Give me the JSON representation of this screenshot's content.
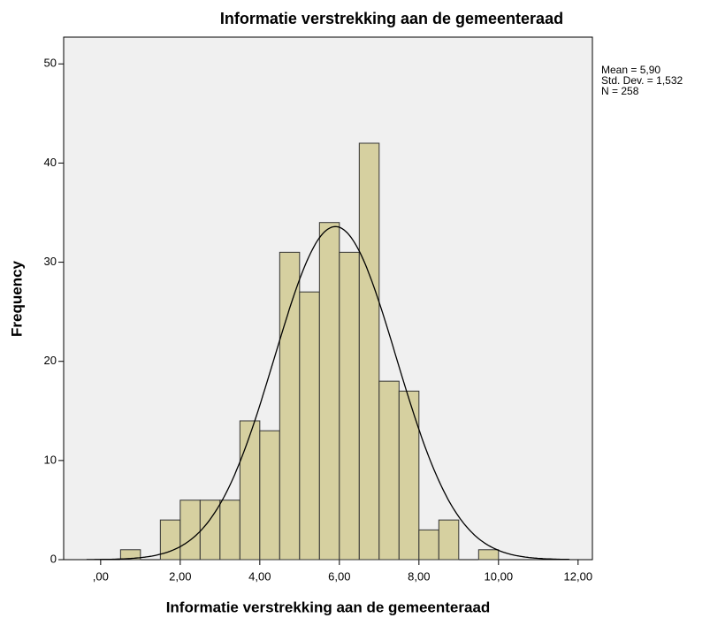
{
  "chart_data": {
    "type": "histogram",
    "title": "Informatie verstrekking aan de gemeenteraad",
    "x_label": "Informatie verstrekking aan de gemeenteraad",
    "y_label": "Frequency",
    "bins": [
      0.5,
      1.0,
      1.5,
      2.0,
      2.5,
      3.0,
      3.5,
      4.0,
      4.5,
      5.0,
      5.5,
      6.0,
      6.5,
      7.0,
      7.5,
      8.0,
      8.5,
      9.0,
      9.5,
      10.0
    ],
    "values": [
      1,
      0,
      4,
      6,
      6,
      6,
      14,
      13,
      31,
      27,
      34,
      31,
      42,
      18,
      17,
      3,
      4,
      0,
      1
    ],
    "color": "#d6d0a0",
    "edge_color": "#333333",
    "plot_background": "#f0f0f0",
    "xlim": [
      -0.93,
      12.36
    ],
    "ylim": [
      0,
      52.7
    ],
    "xticks": [
      {
        "value": 0,
        "label": ",00"
      },
      {
        "value": 2,
        "label": "2,00"
      },
      {
        "value": 4,
        "label": "4,00"
      },
      {
        "value": 6,
        "label": "6,00"
      },
      {
        "value": 8,
        "label": "8,00"
      },
      {
        "value": 10,
        "label": "10,00"
      },
      {
        "value": 12,
        "label": "12,00"
      }
    ],
    "yticks": [
      0,
      10,
      20,
      30,
      40,
      50
    ],
    "normal_curve": true,
    "stats": [
      {
        "label": "Mean = 5,90",
        "value": 5.9
      },
      {
        "label": "Std. Dev. = 1,532",
        "value": 1.532
      },
      {
        "label": "N = 258",
        "value": 258
      }
    ]
  }
}
